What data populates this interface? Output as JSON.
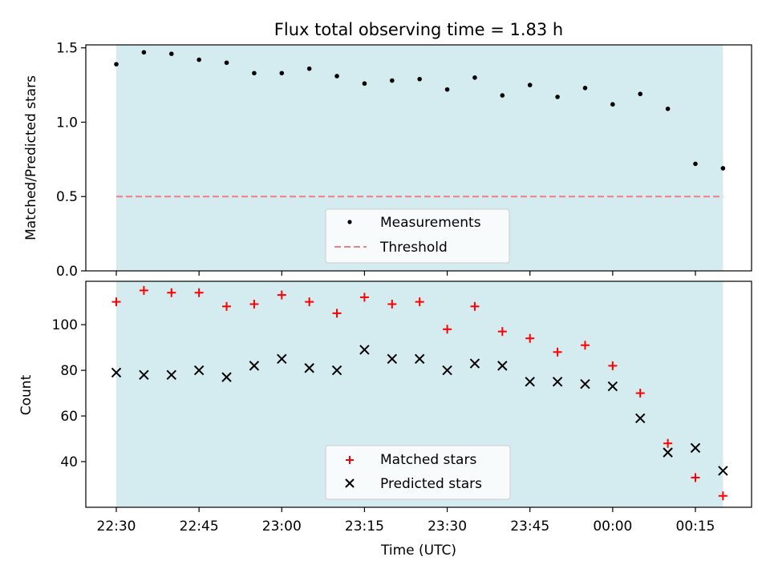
{
  "chart_data": [
    {
      "type": "scatter",
      "title": "Flux total observing time = 1.83 h",
      "ylabel": "Matched/Predicted stars",
      "ylim": [
        0,
        1.52
      ],
      "yticks": [
        "0.0",
        "0.5",
        "1.0",
        "1.5"
      ],
      "ytick_values": [
        0,
        0.5,
        1.0,
        1.5
      ],
      "x_minutes": [
        0,
        5,
        10,
        15,
        20,
        25,
        30,
        35,
        40,
        45,
        50,
        55,
        60,
        65,
        70,
        75,
        80,
        85,
        90,
        95,
        100,
        105,
        110
      ],
      "series": [
        {
          "name": "Measurements",
          "color": "#000000",
          "marker": "dot",
          "values": [
            1.39,
            1.47,
            1.46,
            1.42,
            1.4,
            1.33,
            1.33,
            1.36,
            1.31,
            1.26,
            1.28,
            1.29,
            1.22,
            1.3,
            1.18,
            1.25,
            1.17,
            1.23,
            1.12,
            1.19,
            1.09,
            0.72,
            0.69
          ]
        },
        {
          "name": "Threshold",
          "color": "#f08080",
          "style": "dashed",
          "value": 0.5
        }
      ],
      "legend": "bottom-center",
      "shaded_color": "#d4ebf0"
    },
    {
      "type": "scatter",
      "xlabel": "Time (UTC)",
      "ylabel": "Count",
      "ylim": [
        20,
        119
      ],
      "yticks": [
        "40",
        "60",
        "80",
        "100"
      ],
      "ytick_values": [
        40,
        60,
        80,
        100
      ],
      "xticks": [
        "22:30",
        "22:45",
        "23:00",
        "23:15",
        "23:30",
        "23:45",
        "00:00",
        "00:15"
      ],
      "xtick_minutes": [
        0,
        15,
        30,
        45,
        60,
        75,
        90,
        105
      ],
      "x_minutes": [
        0,
        5,
        10,
        15,
        20,
        25,
        30,
        35,
        40,
        45,
        50,
        55,
        60,
        65,
        70,
        75,
        80,
        85,
        90,
        95,
        100,
        105,
        110
      ],
      "series": [
        {
          "name": "Matched stars",
          "color": "#ff0000",
          "marker": "plus",
          "values": [
            110,
            115,
            114,
            114,
            108,
            109,
            113,
            110,
            105,
            112,
            109,
            110,
            98,
            108,
            97,
            94,
            88,
            91,
            82,
            70,
            48,
            33,
            25
          ]
        },
        {
          "name": "Predicted stars",
          "color": "#000000",
          "marker": "x",
          "values": [
            79,
            78,
            78,
            80,
            77,
            82,
            85,
            81,
            80,
            89,
            85,
            85,
            80,
            83,
            82,
            75,
            75,
            74,
            73,
            59,
            44,
            46,
            36
          ]
        }
      ],
      "legend": "bottom-center",
      "shaded_color": "#d4ebf0"
    }
  ]
}
